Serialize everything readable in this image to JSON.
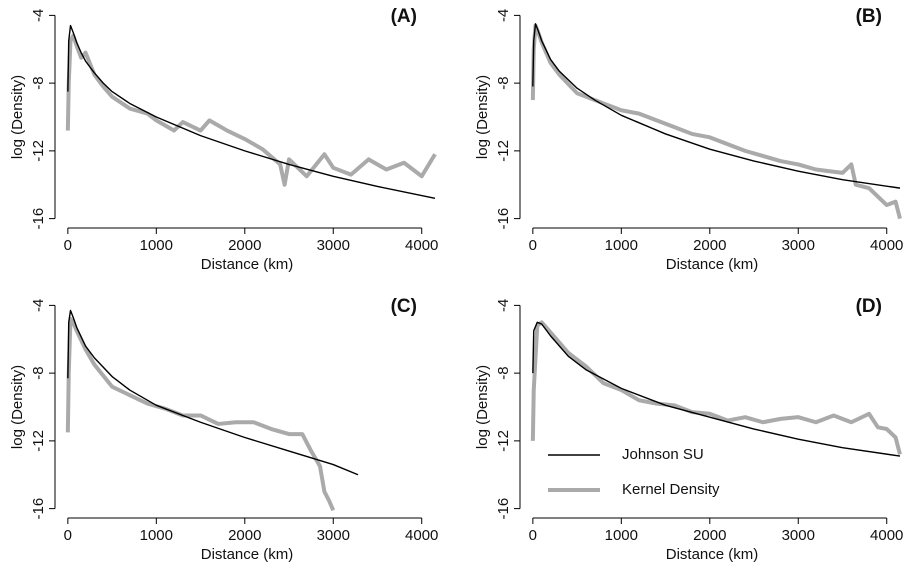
{
  "chart_data": [
    {
      "type": "line",
      "title": "(A)",
      "x_label": "Distance (km)",
      "y_label": "log (Density)",
      "xlim": [
        -100,
        4150
      ],
      "ylim": [
        -16.2,
        -3.8
      ],
      "xticks": [
        0,
        1000,
        2000,
        3000,
        4000
      ],
      "yticks": [
        -4,
        -8,
        -12,
        -16
      ],
      "series": [
        {
          "name": "Johnson SU",
          "color": "#000000",
          "x": [
            0,
            10,
            30,
            60,
            100,
            150,
            200,
            300,
            400,
            500,
            700,
            1000,
            1500,
            2000,
            2500,
            3000,
            3500,
            4150
          ],
          "values": [
            -8.5,
            -5.5,
            -4.6,
            -5.0,
            -5.6,
            -6.2,
            -6.7,
            -7.4,
            -8.0,
            -8.5,
            -9.2,
            -10.0,
            -11.1,
            -12.0,
            -12.8,
            -13.5,
            -14.1,
            -14.8
          ]
        },
        {
          "name": "Kernel Density",
          "color": "#aaaaaa",
          "x": [
            0,
            10,
            30,
            60,
            100,
            150,
            200,
            300,
            400,
            500,
            700,
            900,
            1000,
            1200,
            1300,
            1500,
            1600,
            1800,
            2000,
            2200,
            2400,
            2450,
            2500,
            2700,
            2900,
            3000,
            3200,
            3400,
            3600,
            3800,
            4000,
            4150
          ],
          "values": [
            -10.8,
            -8,
            -5.5,
            -5.2,
            -5.8,
            -6.5,
            -6.2,
            -7.5,
            -8.2,
            -8.8,
            -9.5,
            -9.8,
            -10.2,
            -10.8,
            -10.3,
            -10.8,
            -10.2,
            -10.8,
            -11.3,
            -11.9,
            -12.8,
            -14,
            -12.5,
            -13.5,
            -12.2,
            -13,
            -13.4,
            -12.5,
            -13.1,
            -12.7,
            -13.5,
            -12.2
          ]
        }
      ]
    },
    {
      "type": "line",
      "title": "(B)",
      "x_label": "Distance (km)",
      "y_label": "log (Density)",
      "xlim": [
        -100,
        4150
      ],
      "ylim": [
        -16.2,
        -3.8
      ],
      "xticks": [
        0,
        1000,
        2000,
        3000,
        4000
      ],
      "yticks": [
        -4,
        -8,
        -12,
        -16
      ],
      "series": [
        {
          "name": "Johnson SU",
          "color": "#000000",
          "x": [
            0,
            10,
            30,
            60,
            100,
            200,
            300,
            500,
            700,
            1000,
            1500,
            2000,
            2500,
            3000,
            3500,
            4150
          ],
          "values": [
            -8.2,
            -5.5,
            -4.5,
            -4.9,
            -5.5,
            -6.6,
            -7.3,
            -8.3,
            -9.0,
            -9.9,
            -11.0,
            -11.9,
            -12.6,
            -13.2,
            -13.7,
            -14.2
          ]
        },
        {
          "name": "Kernel Density",
          "color": "#aaaaaa",
          "x": [
            0,
            10,
            30,
            60,
            100,
            200,
            300,
            500,
            700,
            900,
            1000,
            1200,
            1400,
            1600,
            1800,
            2000,
            2200,
            2400,
            2600,
            2800,
            3000,
            3200,
            3500,
            3600,
            3650,
            3800,
            4000,
            4100,
            4150
          ],
          "values": [
            -9,
            -6,
            -4.6,
            -5,
            -5.6,
            -6.8,
            -7.5,
            -8.6,
            -9,
            -9.4,
            -9.6,
            -9.8,
            -10.2,
            -10.6,
            -11,
            -11.2,
            -11.6,
            -12,
            -12.3,
            -12.6,
            -12.8,
            -13.1,
            -13.3,
            -12.8,
            -14,
            -14.2,
            -15.2,
            -15,
            -16
          ]
        }
      ]
    },
    {
      "type": "line",
      "title": "(C)",
      "x_label": "Distance (km)",
      "y_label": "log (Density)",
      "xlim": [
        -100,
        4150
      ],
      "ylim": [
        -16.2,
        -3.8
      ],
      "xticks": [
        0,
        1000,
        2000,
        3000,
        4000
      ],
      "yticks": [
        -4,
        -8,
        -12,
        -16
      ],
      "series": [
        {
          "name": "Johnson SU",
          "color": "#000000",
          "x": [
            0,
            10,
            30,
            60,
            100,
            200,
            300,
            500,
            700,
            1000,
            1500,
            2000,
            2500,
            3000,
            3280
          ],
          "values": [
            -8.3,
            -5,
            -4.3,
            -4.7,
            -5.3,
            -6.4,
            -7.1,
            -8.2,
            -9,
            -9.9,
            -10.9,
            -11.8,
            -12.6,
            -13.4,
            -14
          ]
        },
        {
          "name": "Kernel Density",
          "color": "#aaaaaa",
          "x": [
            0,
            10,
            30,
            60,
            100,
            200,
            300,
            500,
            700,
            900,
            1100,
            1300,
            1500,
            1700,
            1900,
            2100,
            2300,
            2500,
            2650,
            2750,
            2850,
            2900,
            2950,
            3000
          ],
          "values": [
            -11.5,
            -8,
            -4.8,
            -5,
            -5.5,
            -6.6,
            -7.5,
            -8.8,
            -9.3,
            -9.8,
            -10.1,
            -10.5,
            -10.5,
            -11,
            -10.9,
            -10.9,
            -11.3,
            -11.6,
            -11.6,
            -12.6,
            -13.5,
            -15,
            -15.5,
            -16.1
          ]
        }
      ]
    },
    {
      "type": "line",
      "title": "(D)",
      "x_label": "Distance (km)",
      "y_label": "log (Density)",
      "xlim": [
        -100,
        4150
      ],
      "ylim": [
        -16.2,
        -3.8
      ],
      "xticks": [
        0,
        1000,
        2000,
        3000,
        4000
      ],
      "yticks": [
        -4,
        -8,
        -12,
        -16
      ],
      "legend": "lower left",
      "series": [
        {
          "name": "Johnson SU",
          "color": "#000000",
          "x": [
            0,
            10,
            50,
            100,
            200,
            400,
            600,
            1000,
            1500,
            2000,
            2500,
            3000,
            3500,
            4150
          ],
          "values": [
            -8,
            -5.5,
            -5,
            -5.1,
            -5.8,
            -7,
            -7.8,
            -8.9,
            -9.9,
            -10.6,
            -11.3,
            -11.9,
            -12.4,
            -12.9
          ]
        },
        {
          "name": "Kernel Density",
          "color": "#aaaaaa",
          "x": [
            0,
            10,
            50,
            100,
            200,
            400,
            600,
            800,
            1000,
            1200,
            1400,
            1600,
            1800,
            2000,
            2200,
            2400,
            2600,
            2800,
            3000,
            3200,
            3400,
            3600,
            3800,
            3900,
            4000,
            4100,
            4150
          ],
          "values": [
            -12,
            -9,
            -5.2,
            -5,
            -5.6,
            -6.8,
            -7.6,
            -8.6,
            -9,
            -9.6,
            -9.8,
            -9.9,
            -10.3,
            -10.4,
            -10.8,
            -10.6,
            -10.9,
            -10.7,
            -10.6,
            -10.9,
            -10.5,
            -10.9,
            -10.4,
            -11.2,
            -11.3,
            -11.8,
            -12.8
          ]
        }
      ]
    }
  ]
}
